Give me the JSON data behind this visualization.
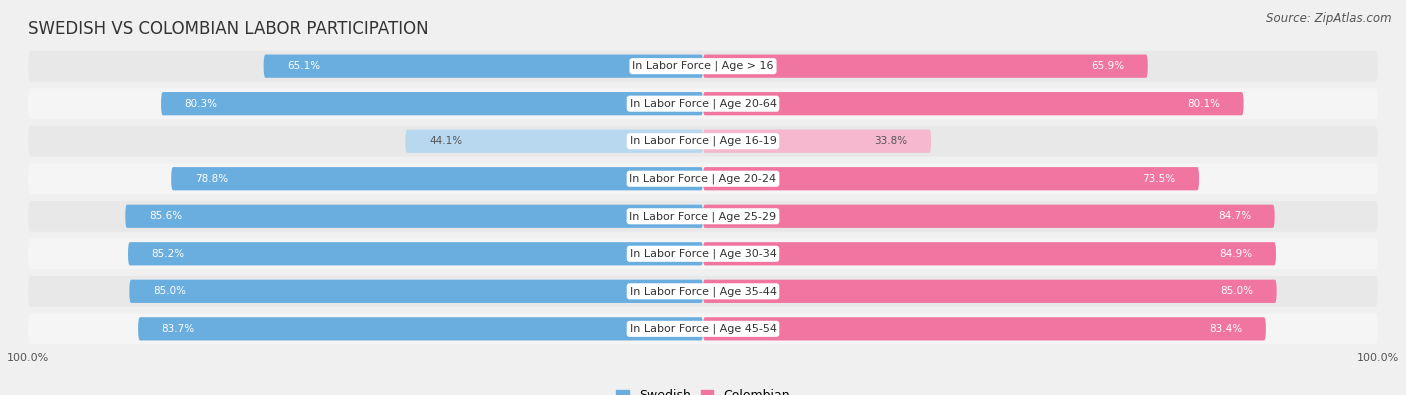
{
  "title": "SWEDISH VS COLOMBIAN LABOR PARTICIPATION",
  "source": "Source: ZipAtlas.com",
  "categories": [
    "In Labor Force | Age > 16",
    "In Labor Force | Age 20-64",
    "In Labor Force | Age 16-19",
    "In Labor Force | Age 20-24",
    "In Labor Force | Age 25-29",
    "In Labor Force | Age 30-34",
    "In Labor Force | Age 35-44",
    "In Labor Force | Age 45-54"
  ],
  "swedish_values": [
    65.1,
    80.3,
    44.1,
    78.8,
    85.6,
    85.2,
    85.0,
    83.7
  ],
  "colombian_values": [
    65.9,
    80.1,
    33.8,
    73.5,
    84.7,
    84.9,
    85.0,
    83.4
  ],
  "swedish_color_full": "#6AAEE0",
  "colombian_color_full": "#F075A0",
  "swedish_color_light": "#B8D8EF",
  "colombian_color_light": "#F5B8CE",
  "max_value": 100.0,
  "background_color": "#f0f0f0",
  "row_bg_even": "#e8e8e8",
  "row_bg_odd": "#f5f5f5",
  "title_fontsize": 12,
  "source_fontsize": 8.5,
  "label_fontsize": 8,
  "value_fontsize": 7.5,
  "legend_fontsize": 9,
  "axis_label_fontsize": 8
}
